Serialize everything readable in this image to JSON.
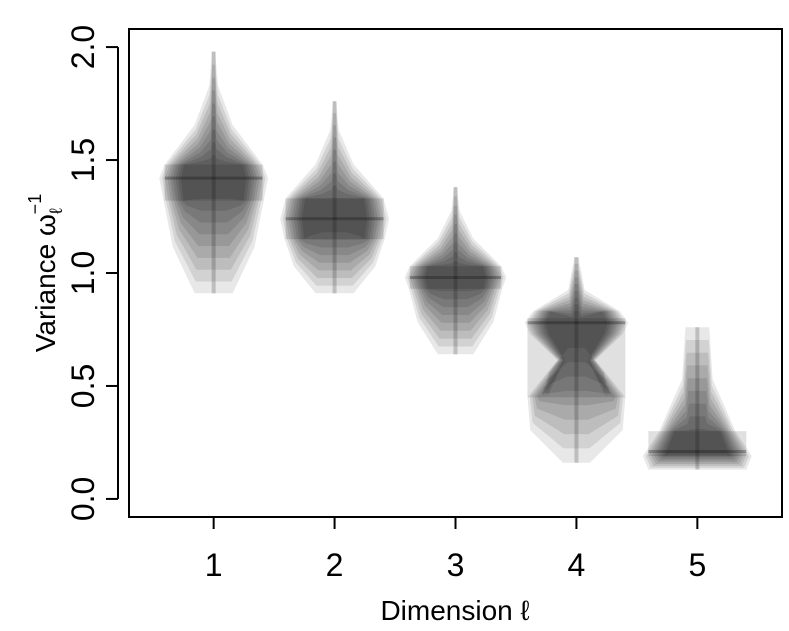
{
  "chart_data": {
    "type": "violin",
    "xlabel": "Dimension ℓ",
    "ylabel": "Variance ω",
    "ylabel_sub": "ℓ",
    "ylabel_sup": "−1",
    "categories": [
      "1",
      "2",
      "3",
      "4",
      "5"
    ],
    "x_ticks": [
      1,
      2,
      3,
      4,
      5
    ],
    "y_ticks": [
      0.0,
      0.5,
      1.0,
      1.5,
      2.0
    ],
    "y_tick_labels": [
      "0.0",
      "0.5",
      "1.0",
      "1.5",
      "2.0"
    ],
    "xlim": [
      0.3,
      5.7
    ],
    "ylim": [
      -0.08,
      2.08
    ],
    "grid": false,
    "series": [
      {
        "category": "1",
        "median": 1.42,
        "q1": 1.32,
        "q3": 1.48,
        "min": 0.91,
        "max": 1.98,
        "max_halfwidth": 0.45
      },
      {
        "category": "2",
        "median": 1.24,
        "q1": 1.15,
        "q3": 1.33,
        "min": 0.91,
        "max": 1.76,
        "max_halfwidth": 0.45
      },
      {
        "category": "3",
        "median": 0.98,
        "q1": 0.93,
        "q3": 1.03,
        "min": 0.64,
        "max": 1.38,
        "max_halfwidth": 0.42
      },
      {
        "category": "4",
        "median": 0.78,
        "q1": 0.45,
        "q3": 0.8,
        "min": 0.16,
        "max": 1.07,
        "max_halfwidth": 0.45
      },
      {
        "category": "5",
        "median": 0.21,
        "q1": 0.19,
        "q3": 0.3,
        "min": 0.13,
        "max": 0.76,
        "max_halfwidth": 0.45
      }
    ],
    "colors": {
      "fill": "#000000",
      "axis": "#000000",
      "background": "#ffffff"
    }
  }
}
